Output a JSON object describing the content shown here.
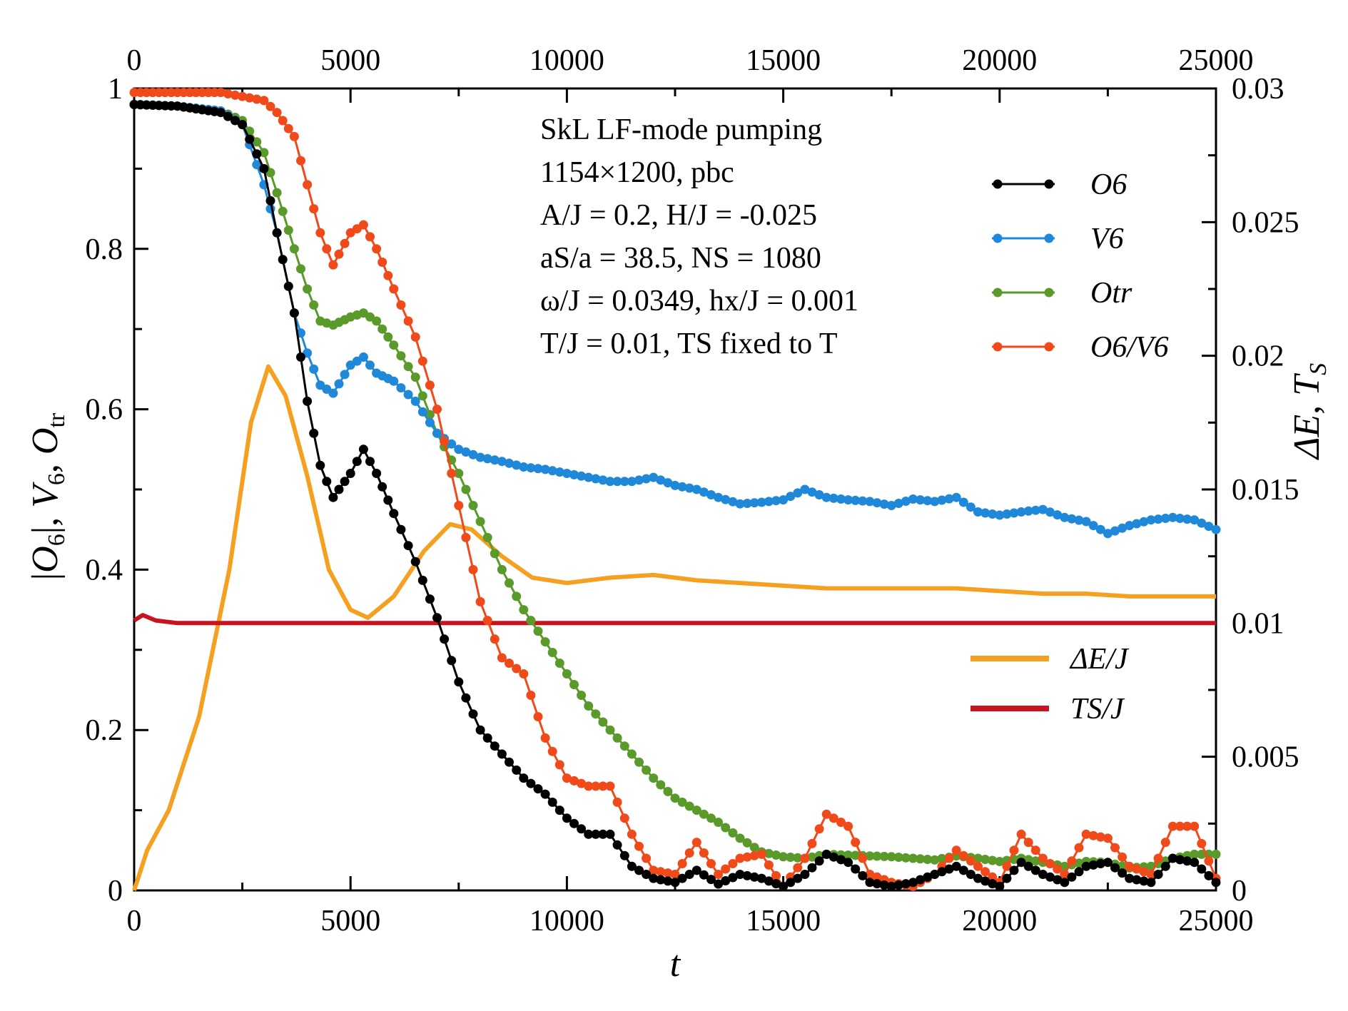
{
  "chart_data": {
    "type": "line",
    "title": "",
    "xlabel": "t",
    "ylabel_left": "|O6|, V6, Otr",
    "ylabel_right": "ΔE, TS",
    "xlim": [
      0,
      25000
    ],
    "ylim_left": [
      0,
      1
    ],
    "ylim_right": [
      0,
      0.03
    ],
    "x_ticks": [
      "0",
      "5000",
      "10000",
      "15000",
      "20000",
      "25000"
    ],
    "y_left_ticks": [
      "0",
      "0.2",
      "0.4",
      "0.6",
      "0.8",
      "1"
    ],
    "y_right_ticks": [
      "0",
      "0.005",
      "0.01",
      "0.015",
      "0.02",
      "0.025",
      "0.03"
    ],
    "annotation_lines": [
      "SkL LF-mode pumping",
      "1154×1200, pbc",
      "A/J = 0.2, H/J = -0.025",
      "aS/a = 38.5, NS = 1080",
      "ω/J = 0.0349, hx/J = 0.001",
      "T/J = 0.01, TS fixed to T"
    ],
    "legend_upper": [
      "O6",
      "V6",
      "Otr",
      "O6/V6"
    ],
    "legend_lower": [
      "ΔE/J",
      "TS/J"
    ],
    "series": [
      {
        "name": "O6",
        "axis": "left",
        "color": "#000000",
        "markers": true,
        "points": [
          [
            0,
            0.98
          ],
          [
            1000,
            0.978
          ],
          [
            2000,
            0.97
          ],
          [
            2500,
            0.955
          ],
          [
            3000,
            0.9
          ],
          [
            3300,
            0.82
          ],
          [
            3700,
            0.72
          ],
          [
            4000,
            0.61
          ],
          [
            4300,
            0.53
          ],
          [
            4600,
            0.49
          ],
          [
            5000,
            0.52
          ],
          [
            5300,
            0.55
          ],
          [
            5600,
            0.52
          ],
          [
            6000,
            0.47
          ],
          [
            6500,
            0.41
          ],
          [
            7000,
            0.34
          ],
          [
            7500,
            0.26
          ],
          [
            8000,
            0.2
          ],
          [
            8500,
            0.17
          ],
          [
            9000,
            0.14
          ],
          [
            9500,
            0.12
          ],
          [
            10000,
            0.09
          ],
          [
            10500,
            0.07
          ],
          [
            11000,
            0.07
          ],
          [
            11500,
            0.03
          ],
          [
            12000,
            0.015
          ],
          [
            12500,
            0.01
          ],
          [
            13000,
            0.025
          ],
          [
            13500,
            0.008
          ],
          [
            14000,
            0.02
          ],
          [
            14500,
            0.015
          ],
          [
            15000,
            0.005
          ],
          [
            15500,
            0.02
          ],
          [
            16000,
            0.045
          ],
          [
            16500,
            0.035
          ],
          [
            17000,
            0.01
          ],
          [
            17500,
            0.005
          ],
          [
            18000,
            0.01
          ],
          [
            18500,
            0.02
          ],
          [
            19000,
            0.03
          ],
          [
            19500,
            0.015
          ],
          [
            20000,
            0.005
          ],
          [
            20500,
            0.035
          ],
          [
            21000,
            0.02
          ],
          [
            21500,
            0.01
          ],
          [
            22000,
            0.03
          ],
          [
            22500,
            0.035
          ],
          [
            23000,
            0.015
          ],
          [
            23500,
            0.01
          ],
          [
            24000,
            0.04
          ],
          [
            24500,
            0.035
          ],
          [
            25000,
            0.01
          ]
        ]
      },
      {
        "name": "V6",
        "axis": "left",
        "color": "#1f88d8",
        "markers": true,
        "points": [
          [
            0,
            0.98
          ],
          [
            1000,
            0.978
          ],
          [
            2000,
            0.972
          ],
          [
            2500,
            0.955
          ],
          [
            3000,
            0.88
          ],
          [
            3300,
            0.82
          ],
          [
            3700,
            0.72
          ],
          [
            4000,
            0.67
          ],
          [
            4300,
            0.63
          ],
          [
            4600,
            0.62
          ],
          [
            5000,
            0.655
          ],
          [
            5300,
            0.665
          ],
          [
            5600,
            0.645
          ],
          [
            6000,
            0.635
          ],
          [
            6500,
            0.61
          ],
          [
            7000,
            0.57
          ],
          [
            7500,
            0.55
          ],
          [
            8000,
            0.54
          ],
          [
            8500,
            0.535
          ],
          [
            9000,
            0.528
          ],
          [
            9500,
            0.525
          ],
          [
            10000,
            0.52
          ],
          [
            10500,
            0.515
          ],
          [
            11000,
            0.51
          ],
          [
            11500,
            0.51
          ],
          [
            12000,
            0.515
          ],
          [
            12500,
            0.505
          ],
          [
            13000,
            0.5
          ],
          [
            13500,
            0.49
          ],
          [
            14000,
            0.482
          ],
          [
            14500,
            0.484
          ],
          [
            15000,
            0.487
          ],
          [
            15500,
            0.5
          ],
          [
            16000,
            0.49
          ],
          [
            16500,
            0.487
          ],
          [
            17000,
            0.485
          ],
          [
            17500,
            0.48
          ],
          [
            18000,
            0.488
          ],
          [
            18500,
            0.485
          ],
          [
            19000,
            0.49
          ],
          [
            19500,
            0.472
          ],
          [
            20000,
            0.468
          ],
          [
            20500,
            0.472
          ],
          [
            21000,
            0.475
          ],
          [
            21500,
            0.465
          ],
          [
            22000,
            0.46
          ],
          [
            22500,
            0.445
          ],
          [
            23000,
            0.455
          ],
          [
            23500,
            0.462
          ],
          [
            24000,
            0.465
          ],
          [
            24500,
            0.462
          ],
          [
            25000,
            0.45
          ]
        ]
      },
      {
        "name": "Otr",
        "axis": "left",
        "color": "#5a9a2a",
        "markers": true,
        "points": [
          [
            0,
            0.98
          ],
          [
            1000,
            0.978
          ],
          [
            2000,
            0.972
          ],
          [
            2500,
            0.96
          ],
          [
            3000,
            0.92
          ],
          [
            3300,
            0.87
          ],
          [
            3700,
            0.8
          ],
          [
            4000,
            0.75
          ],
          [
            4300,
            0.71
          ],
          [
            4600,
            0.705
          ],
          [
            5000,
            0.715
          ],
          [
            5300,
            0.72
          ],
          [
            5600,
            0.71
          ],
          [
            6000,
            0.68
          ],
          [
            6500,
            0.64
          ],
          [
            7000,
            0.57
          ],
          [
            7500,
            0.52
          ],
          [
            8000,
            0.46
          ],
          [
            8500,
            0.4
          ],
          [
            9000,
            0.35
          ],
          [
            9500,
            0.31
          ],
          [
            10000,
            0.27
          ],
          [
            10500,
            0.23
          ],
          [
            11000,
            0.2
          ],
          [
            11500,
            0.17
          ],
          [
            12000,
            0.14
          ],
          [
            12500,
            0.115
          ],
          [
            13000,
            0.1
          ],
          [
            13500,
            0.085
          ],
          [
            14000,
            0.065
          ],
          [
            14500,
            0.048
          ],
          [
            15000,
            0.042
          ],
          [
            15500,
            0.04
          ],
          [
            16000,
            0.045
          ],
          [
            16500,
            0.044
          ],
          [
            17000,
            0.043
          ],
          [
            17500,
            0.042
          ],
          [
            18000,
            0.04
          ],
          [
            18500,
            0.038
          ],
          [
            19000,
            0.043
          ],
          [
            19500,
            0.04
          ],
          [
            20000,
            0.036
          ],
          [
            20500,
            0.04
          ],
          [
            21000,
            0.035
          ],
          [
            21500,
            0.03
          ],
          [
            22000,
            0.036
          ],
          [
            22500,
            0.035
          ],
          [
            23000,
            0.028
          ],
          [
            23500,
            0.03
          ],
          [
            24000,
            0.04
          ],
          [
            24500,
            0.045
          ],
          [
            25000,
            0.045
          ]
        ]
      },
      {
        "name": "O6/V6",
        "axis": "left",
        "color": "#f04a1a",
        "markers": true,
        "points": [
          [
            0,
            0.995
          ],
          [
            1000,
            0.995
          ],
          [
            2000,
            0.995
          ],
          [
            2500,
            0.99
          ],
          [
            3000,
            0.985
          ],
          [
            3300,
            0.97
          ],
          [
            3700,
            0.94
          ],
          [
            4000,
            0.88
          ],
          [
            4300,
            0.82
          ],
          [
            4600,
            0.78
          ],
          [
            5000,
            0.82
          ],
          [
            5300,
            0.83
          ],
          [
            5600,
            0.8
          ],
          [
            6000,
            0.75
          ],
          [
            6500,
            0.69
          ],
          [
            7000,
            0.6
          ],
          [
            7500,
            0.48
          ],
          [
            8000,
            0.36
          ],
          [
            8500,
            0.29
          ],
          [
            9000,
            0.27
          ],
          [
            9500,
            0.19
          ],
          [
            10000,
            0.14
          ],
          [
            10500,
            0.13
          ],
          [
            11000,
            0.13
          ],
          [
            11500,
            0.07
          ],
          [
            12000,
            0.025
          ],
          [
            12500,
            0.02
          ],
          [
            13000,
            0.06
          ],
          [
            13500,
            0.02
          ],
          [
            14000,
            0.04
          ],
          [
            14500,
            0.045
          ],
          [
            15000,
            0.005
          ],
          [
            15500,
            0.04
          ],
          [
            16000,
            0.095
          ],
          [
            16500,
            0.08
          ],
          [
            17000,
            0.02
          ],
          [
            17500,
            0.01
          ],
          [
            18000,
            0.005
          ],
          [
            18500,
            0.02
          ],
          [
            19000,
            0.05
          ],
          [
            19500,
            0.03
          ],
          [
            20000,
            0.01
          ],
          [
            20500,
            0.07
          ],
          [
            21000,
            0.04
          ],
          [
            21500,
            0.02
          ],
          [
            22000,
            0.07
          ],
          [
            22500,
            0.065
          ],
          [
            23000,
            0.03
          ],
          [
            23500,
            0.02
          ],
          [
            24000,
            0.08
          ],
          [
            24500,
            0.08
          ],
          [
            25000,
            0.015
          ]
        ]
      },
      {
        "name": "ΔE/J",
        "axis": "right",
        "color": "#f5a020",
        "markers": false,
        "points": [
          [
            0,
            0
          ],
          [
            300,
            0.0015
          ],
          [
            800,
            0.003
          ],
          [
            1500,
            0.0065
          ],
          [
            2200,
            0.012
          ],
          [
            2700,
            0.0175
          ],
          [
            3100,
            0.0196
          ],
          [
            3500,
            0.0185
          ],
          [
            4000,
            0.0155
          ],
          [
            4500,
            0.012
          ],
          [
            5000,
            0.0105
          ],
          [
            5400,
            0.0102
          ],
          [
            6000,
            0.011
          ],
          [
            6700,
            0.0127
          ],
          [
            7300,
            0.0137
          ],
          [
            7800,
            0.0135
          ],
          [
            8500,
            0.0125
          ],
          [
            9200,
            0.0117
          ],
          [
            10000,
            0.0115
          ],
          [
            11000,
            0.0117
          ],
          [
            12000,
            0.0118
          ],
          [
            13000,
            0.0116
          ],
          [
            14000,
            0.0115
          ],
          [
            15000,
            0.0114
          ],
          [
            16000,
            0.0113
          ],
          [
            17000,
            0.0113
          ],
          [
            18000,
            0.0113
          ],
          [
            19000,
            0.0113
          ],
          [
            20000,
            0.0112
          ],
          [
            21000,
            0.0111
          ],
          [
            22000,
            0.0111
          ],
          [
            23000,
            0.011
          ],
          [
            24000,
            0.011
          ],
          [
            25000,
            0.011
          ]
        ]
      },
      {
        "name": "TS/J",
        "axis": "right",
        "color": "#c8141e",
        "markers": false,
        "points": [
          [
            0,
            0.0101
          ],
          [
            200,
            0.0103
          ],
          [
            500,
            0.0101
          ],
          [
            1000,
            0.01
          ],
          [
            2000,
            0.01
          ],
          [
            5000,
            0.01
          ],
          [
            10000,
            0.01
          ],
          [
            15000,
            0.01
          ],
          [
            20000,
            0.01
          ],
          [
            25000,
            0.01
          ]
        ]
      }
    ]
  }
}
